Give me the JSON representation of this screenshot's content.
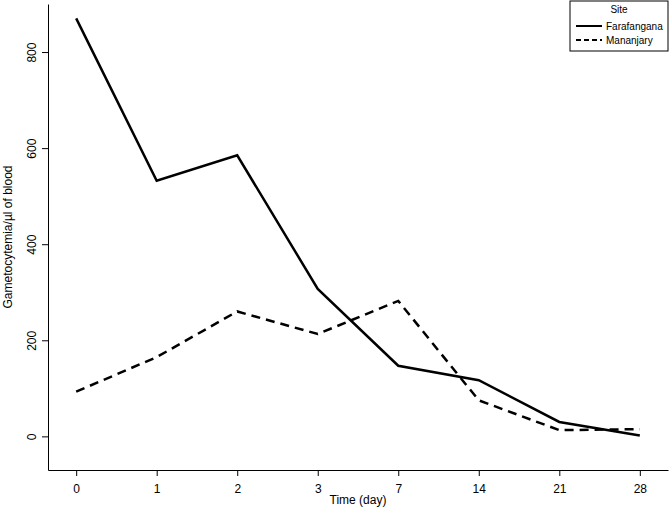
{
  "chart_data": {
    "type": "line",
    "x_label": "Time (day)",
    "y_label": "Gametocytemia/µl of blood",
    "legend_title": "Site",
    "legend": "top-right",
    "categories": [
      "0",
      "1",
      "2",
      "3",
      "7",
      "14",
      "21",
      "28"
    ],
    "series": [
      {
        "name": "Farafangana",
        "color": "#000000",
        "line_style": "solid",
        "values": [
          870,
          532,
          585,
          307,
          147,
          117,
          30,
          2
        ]
      },
      {
        "name": "Mananjary",
        "color": "#000000",
        "line_style": "dashed",
        "values": [
          93,
          165,
          260,
          213,
          282,
          75,
          13,
          15
        ]
      }
    ],
    "ylim": [
      -70,
      900
    ],
    "yticks": [
      0,
      200,
      400,
      600,
      800
    ],
    "grid": false
  }
}
